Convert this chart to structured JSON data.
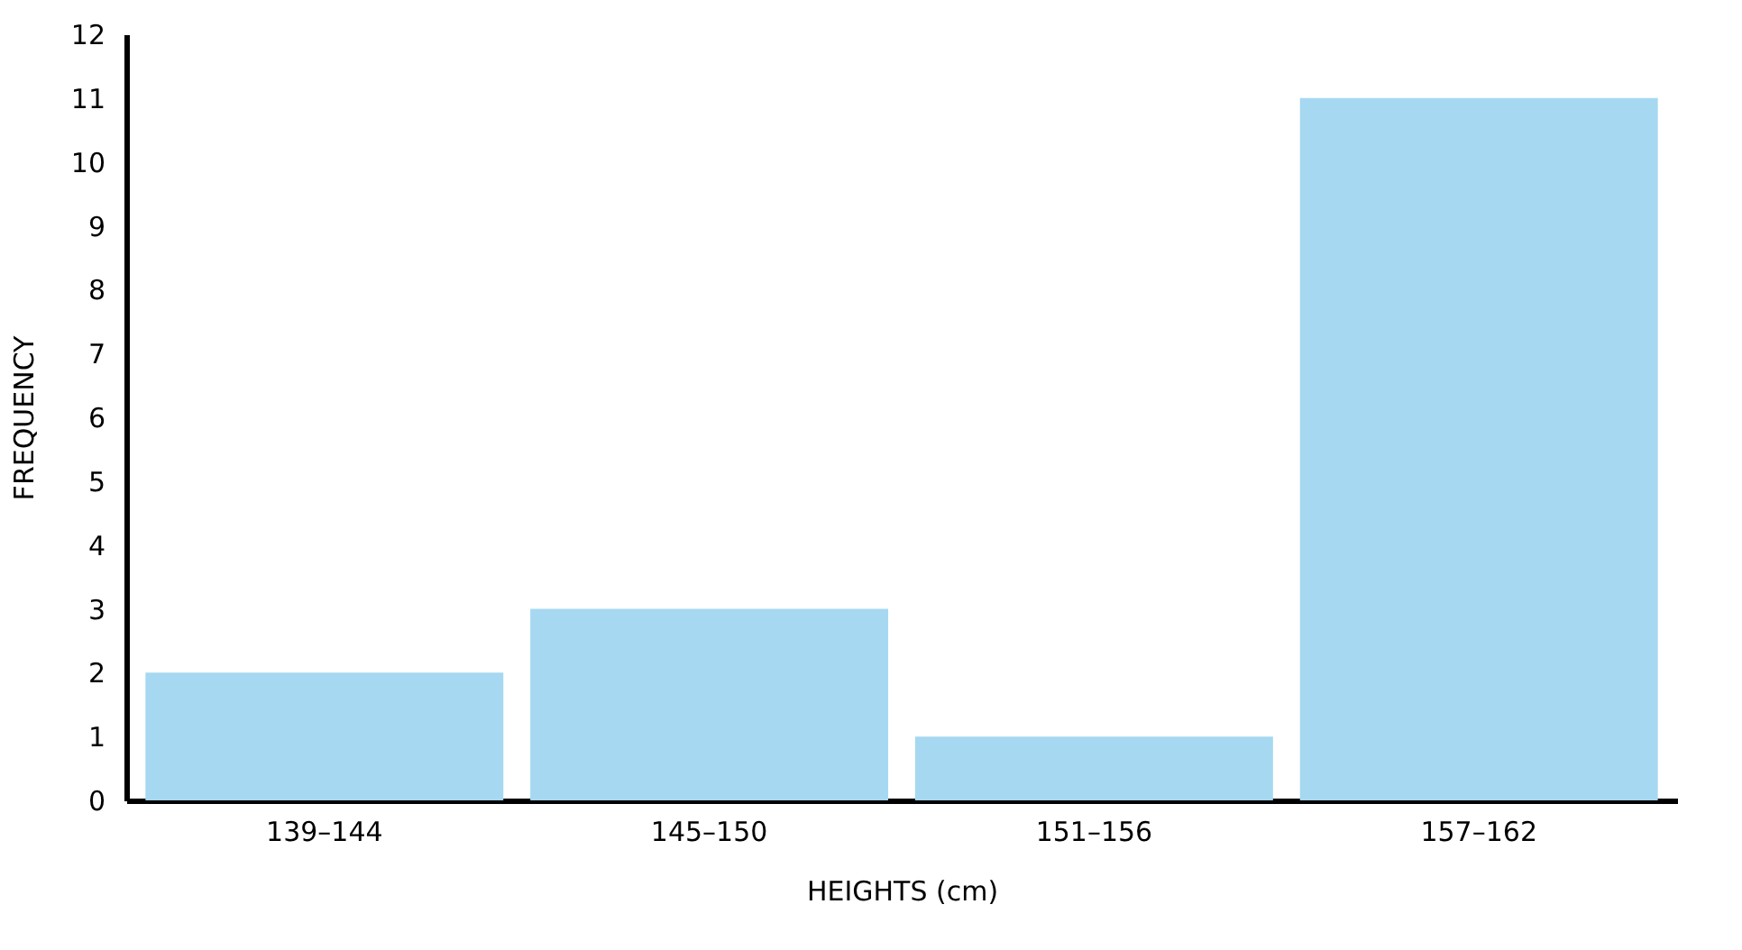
{
  "chart_data": {
    "type": "bar",
    "xlabel": "HEIGHTS (cm)",
    "ylabel": "FREQUENCY",
    "categories": [
      "139–144",
      "145–150",
      "151–156",
      "157–162"
    ],
    "values": [
      2,
      3,
      1,
      11
    ],
    "color": "#a6d8f1",
    "ylim": [
      0,
      12
    ],
    "yticks": [
      0,
      1,
      2,
      3,
      4,
      5,
      6,
      7,
      8,
      9,
      10,
      11,
      12
    ],
    "grid": false
  }
}
